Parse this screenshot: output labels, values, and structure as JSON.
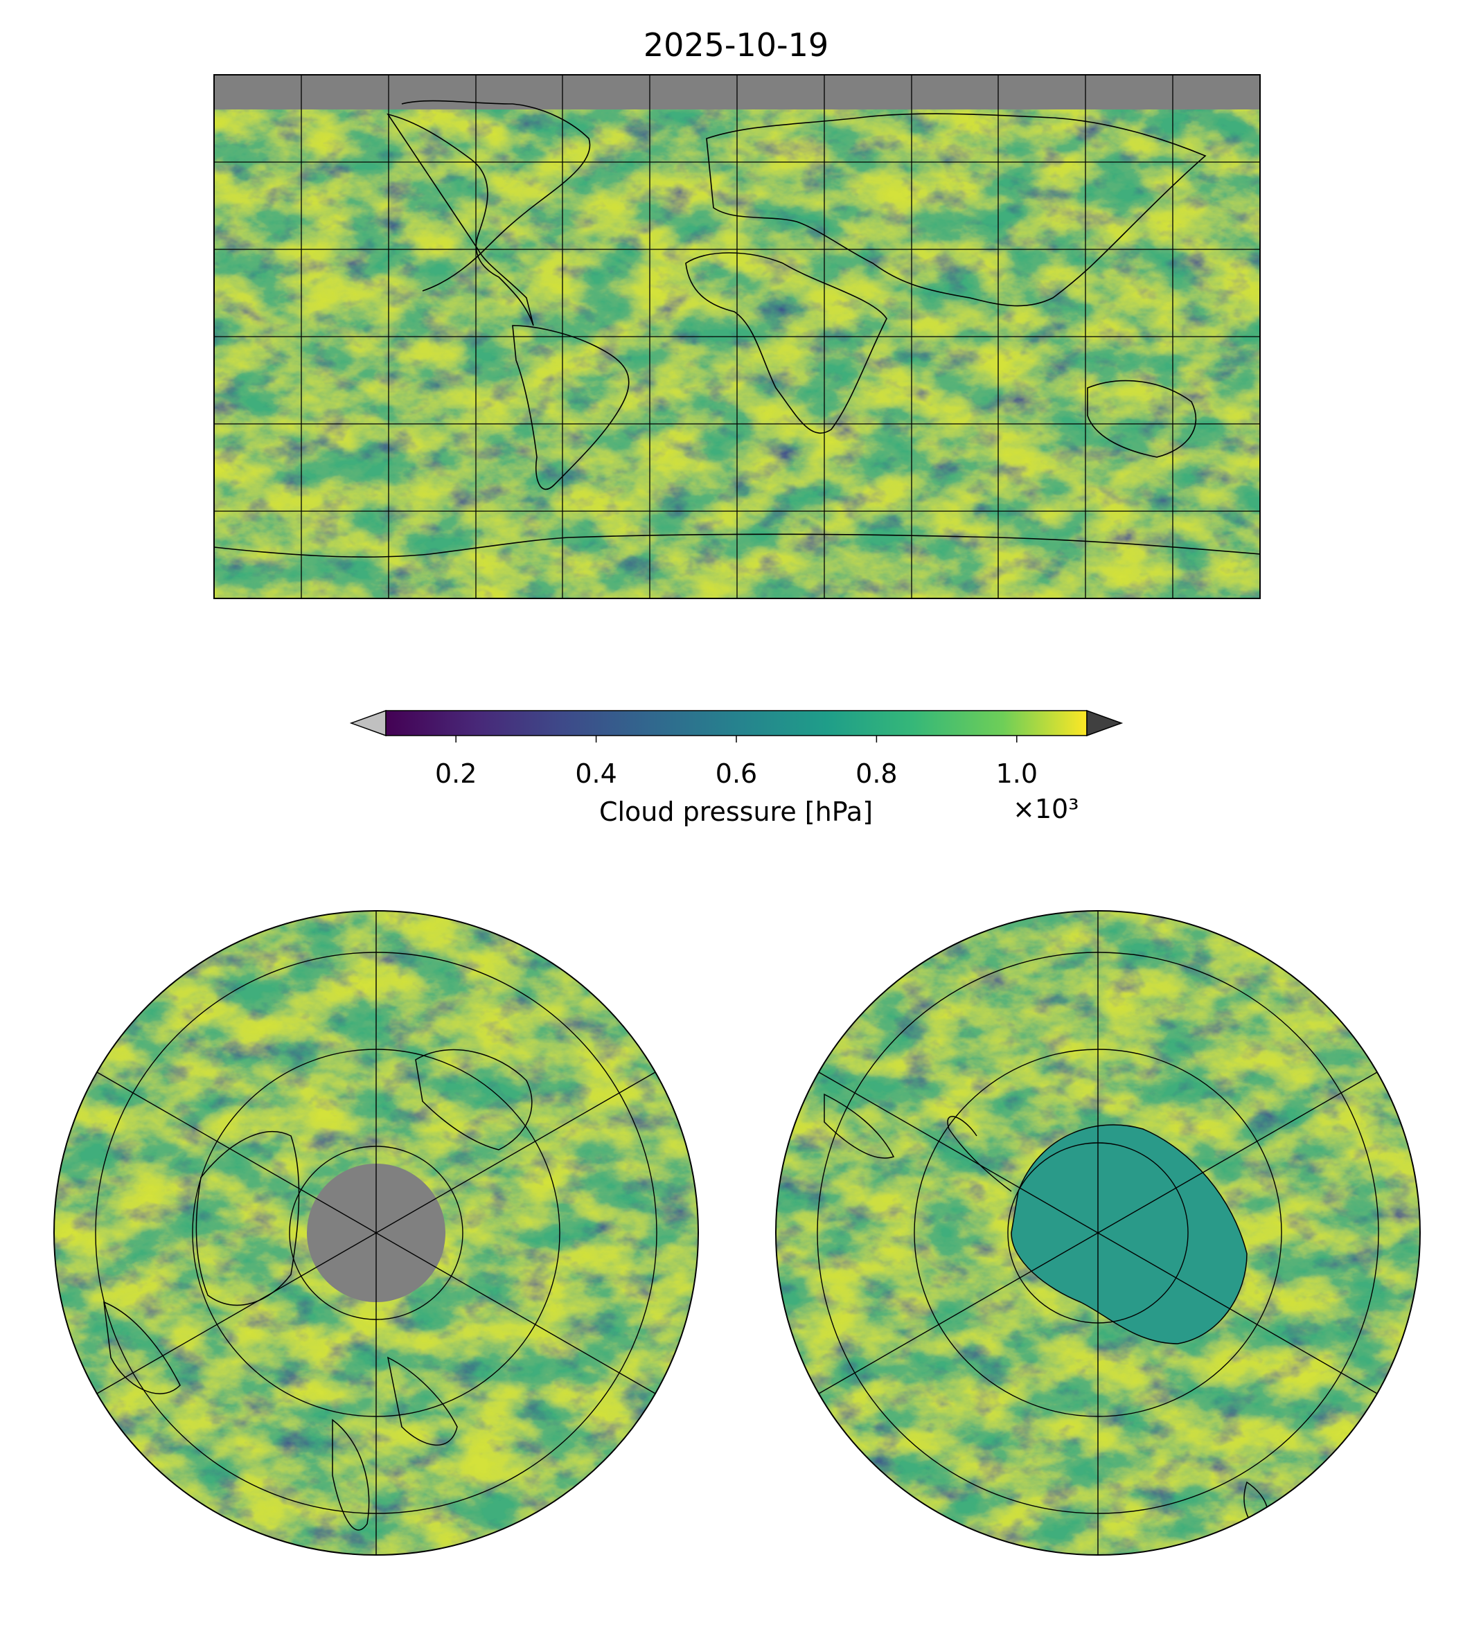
{
  "title": "2025-10-19",
  "colorbar": {
    "label": "Cloud pressure [hPa]",
    "exponent": "×10³",
    "tick_labels": [
      "0.2",
      "0.4",
      "0.6",
      "0.8",
      "1.0"
    ],
    "tick_values": [
      0.2,
      0.4,
      0.6,
      0.8,
      1.0
    ],
    "range": [
      0.1,
      1.1
    ],
    "colormap": "viridis",
    "colors": [
      "#440154",
      "#3b528b",
      "#21918c",
      "#5ec962",
      "#fde725"
    ],
    "under_color": "#c0c0c0",
    "over_color": "#404040"
  },
  "maps": [
    {
      "name": "global-map",
      "projection": "plate-carree",
      "no_data_color": "#808080"
    },
    {
      "name": "north-polar-map",
      "projection": "north-polar-stereographic",
      "no_data_color": "#808080"
    },
    {
      "name": "south-polar-map",
      "projection": "south-polar-stereographic"
    }
  ]
}
